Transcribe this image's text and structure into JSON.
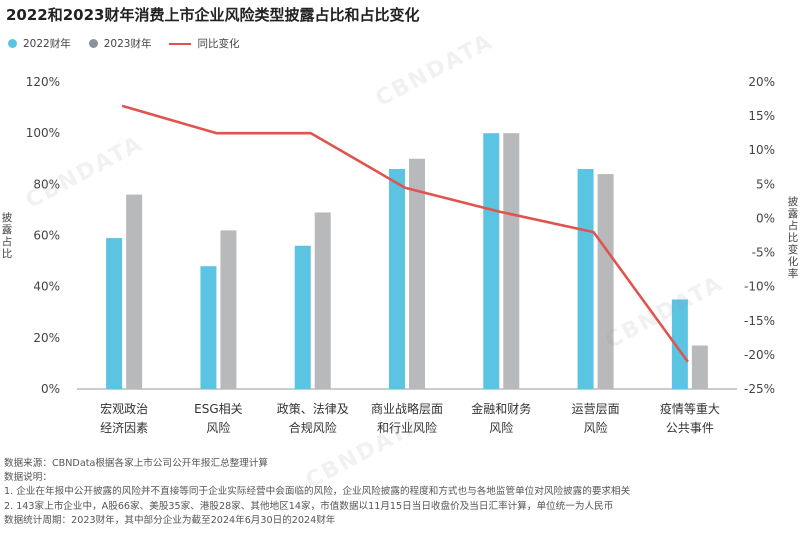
{
  "title": "2022和2023财年消费上市企业风险类型披露占比和占比变化",
  "legend": [
    {
      "label": "2022财年",
      "color": "#5BC4E3",
      "kind": "dot"
    },
    {
      "label": "2023财年",
      "color": "#8A9299",
      "kind": "dot"
    },
    {
      "label": "同比变化",
      "color": "#E0544F",
      "kind": "line"
    }
  ],
  "watermark": "CBNDATA",
  "chart_data": {
    "type": "bar",
    "categories": [
      [
        "宏观政治",
        "经济因素"
      ],
      [
        "ESG相关",
        "风险"
      ],
      [
        "政策、法律及",
        "合规风险"
      ],
      [
        "商业战略层面",
        "和行业风险"
      ],
      [
        "金融和财务",
        "风险"
      ],
      [
        "运营层面",
        "风险"
      ],
      [
        "疫情等重大",
        "公共事件"
      ]
    ],
    "series": [
      {
        "name": "2022财年",
        "axis": "left",
        "color": "#5BC4E3",
        "values": [
          59,
          48,
          56,
          86,
          100,
          86,
          35
        ]
      },
      {
        "name": "2023财年",
        "axis": "left",
        "color": "#B8B9BA",
        "values": [
          76,
          62,
          69,
          90,
          100,
          84,
          17
        ]
      },
      {
        "name": "同比变化",
        "axis": "right",
        "type": "line",
        "color": "#E0544F",
        "values": [
          16.5,
          12.5,
          12.5,
          4.5,
          1.0,
          -2.0,
          -21.0
        ]
      }
    ],
    "ylabel_left": "披露占比",
    "ylabel_right": "披露占比变化率",
    "ylim_left": [
      0,
      120
    ],
    "yticks_left": [
      "0%",
      "20%",
      "40%",
      "60%",
      "80%",
      "100%",
      "120%"
    ],
    "ylim_right": [
      -25,
      20
    ],
    "yticks_right": [
      "-25%",
      "-20%",
      "-15%",
      "-10%",
      "-5%",
      "0%",
      "5%",
      "10%",
      "15%",
      "20%"
    ],
    "grid": false
  },
  "notes": [
    "数据来源：CBNData根据各家上市公司公开年报汇总整理计算",
    "数据说明：",
    "1. 企业在年报中公开披露的风险并不直接等同于企业实际经营中会面临的风险，企业风险披露的程度和方式也与各地监管单位对风险披露的要求相关",
    "2. 143家上市企业中，A股66家、美股35家、港股28家、其他地区14家，市值数据以11月15日当日收盘价及当日汇率计算，单位统一为人民币",
    "数据统计周期：2023财年，其中部分企业为截至2024年6月30日的2024财年"
  ]
}
